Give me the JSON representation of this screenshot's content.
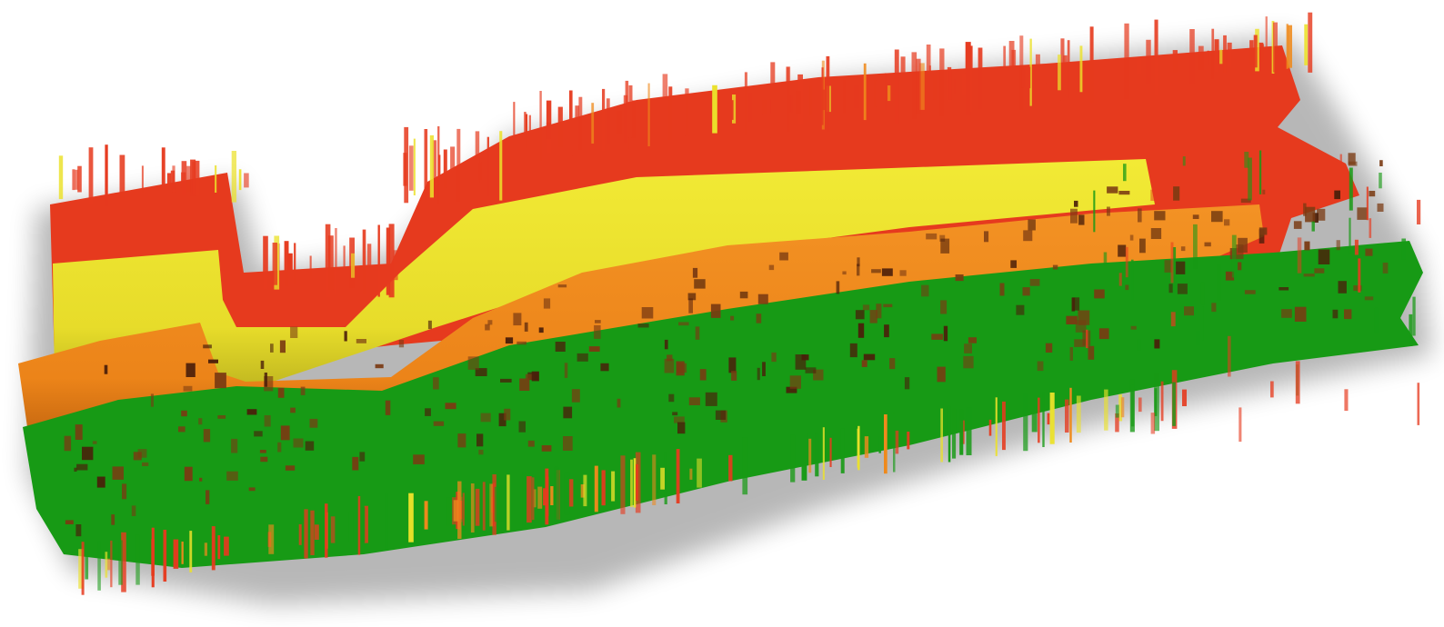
{
  "colors": {
    "background": "#ffffff",
    "red": "#e63a1e",
    "yellow": "#ebe12a",
    "orange": "#ef8a1c",
    "green": "#179a15",
    "brown": "#7a3a12",
    "dark_brown": "#4a1e0a",
    "shadow": "#000000"
  },
  "layers": [
    {
      "name": "red-band",
      "color": "red"
    },
    {
      "name": "yellow-band",
      "color": "yellow"
    },
    {
      "name": "orange-band",
      "color": "orange"
    },
    {
      "name": "green-band",
      "color": "green"
    }
  ]
}
